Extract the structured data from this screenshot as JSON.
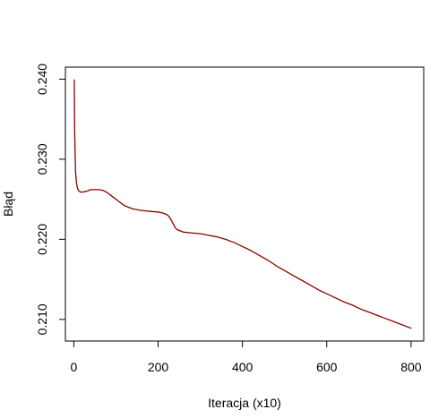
{
  "chart_data": {
    "type": "line",
    "title": "",
    "xlabel": "Iteracja (x10)",
    "ylabel": "Błąd",
    "xlim": [
      -20,
      830
    ],
    "ylim": [
      0.2073,
      0.2415
    ],
    "xticks": [
      0,
      200,
      400,
      600,
      800
    ],
    "xtick_labels": [
      "0",
      "200",
      "400",
      "600",
      "800"
    ],
    "yticks": [
      0.21,
      0.22,
      0.23,
      0.24
    ],
    "ytick_labels": [
      "0.210",
      "0.220",
      "0.230",
      "0.240"
    ],
    "grid": false,
    "series": [
      {
        "color": "#8b0000",
        "x": [
          1,
          2,
          4,
          6,
          8,
          10,
          15,
          20,
          30,
          40,
          50,
          60,
          70,
          80,
          90,
          100,
          110,
          120,
          140,
          160,
          180,
          200,
          210,
          220,
          225,
          230,
          235,
          240,
          245,
          250,
          260,
          280,
          300,
          320,
          340,
          360,
          380,
          400,
          420,
          440,
          460,
          480,
          500,
          520,
          540,
          560,
          580,
          600,
          620,
          640,
          660,
          680,
          700,
          720,
          740,
          760,
          780,
          800
        ],
        "y": [
          0.2399,
          0.2335,
          0.2285,
          0.2272,
          0.2265,
          0.2262,
          0.2259,
          0.2259,
          0.226,
          0.2262,
          0.2262,
          0.2262,
          0.2261,
          0.2258,
          0.2254,
          0.225,
          0.2246,
          0.2242,
          0.2238,
          0.2236,
          0.2235,
          0.2234,
          0.2233,
          0.2231,
          0.2229,
          0.2225,
          0.222,
          0.2215,
          0.2212,
          0.2211,
          0.2209,
          0.2208,
          0.2207,
          0.2205,
          0.2203,
          0.22,
          0.2196,
          0.2191,
          0.2186,
          0.218,
          0.2174,
          0.2167,
          0.2161,
          0.2155,
          0.2149,
          0.2143,
          0.2137,
          0.2132,
          0.2127,
          0.2122,
          0.2118,
          0.2113,
          0.2109,
          0.2105,
          0.2101,
          0.2097,
          0.2093,
          0.2089
        ]
      }
    ]
  }
}
